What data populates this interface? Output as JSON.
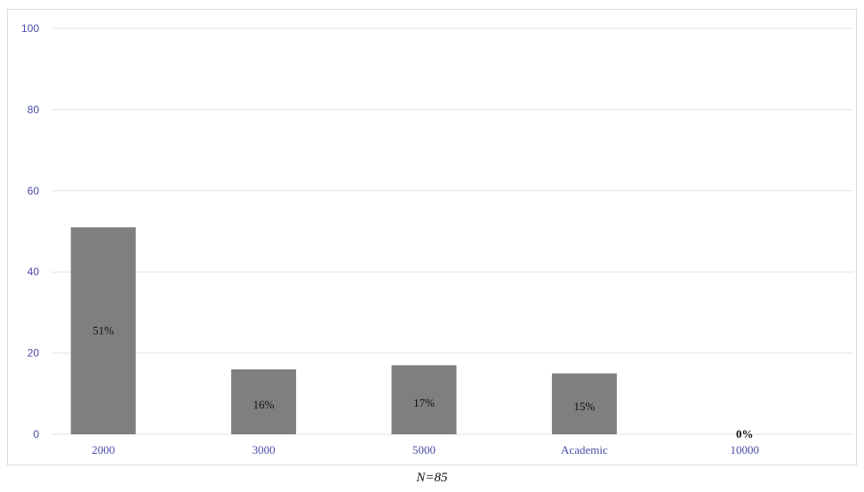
{
  "chart_data": {
    "type": "bar",
    "categories": [
      "2000",
      "3000",
      "5000",
      "Academic",
      "10000"
    ],
    "values": [
      51,
      16,
      17,
      15,
      0
    ],
    "data_labels": [
      "51%",
      "16%",
      "17%",
      "15%",
      "0%"
    ],
    "ylim": [
      0,
      100
    ],
    "yticks": [
      "0",
      "20",
      "40",
      "60",
      "80",
      "100"
    ],
    "ytick_values": [
      0,
      20,
      40,
      60,
      80,
      100
    ],
    "grid": true,
    "bar_color": "#7f7f7f",
    "grid_color": "#e3e3e3"
  },
  "caption": "N=85"
}
